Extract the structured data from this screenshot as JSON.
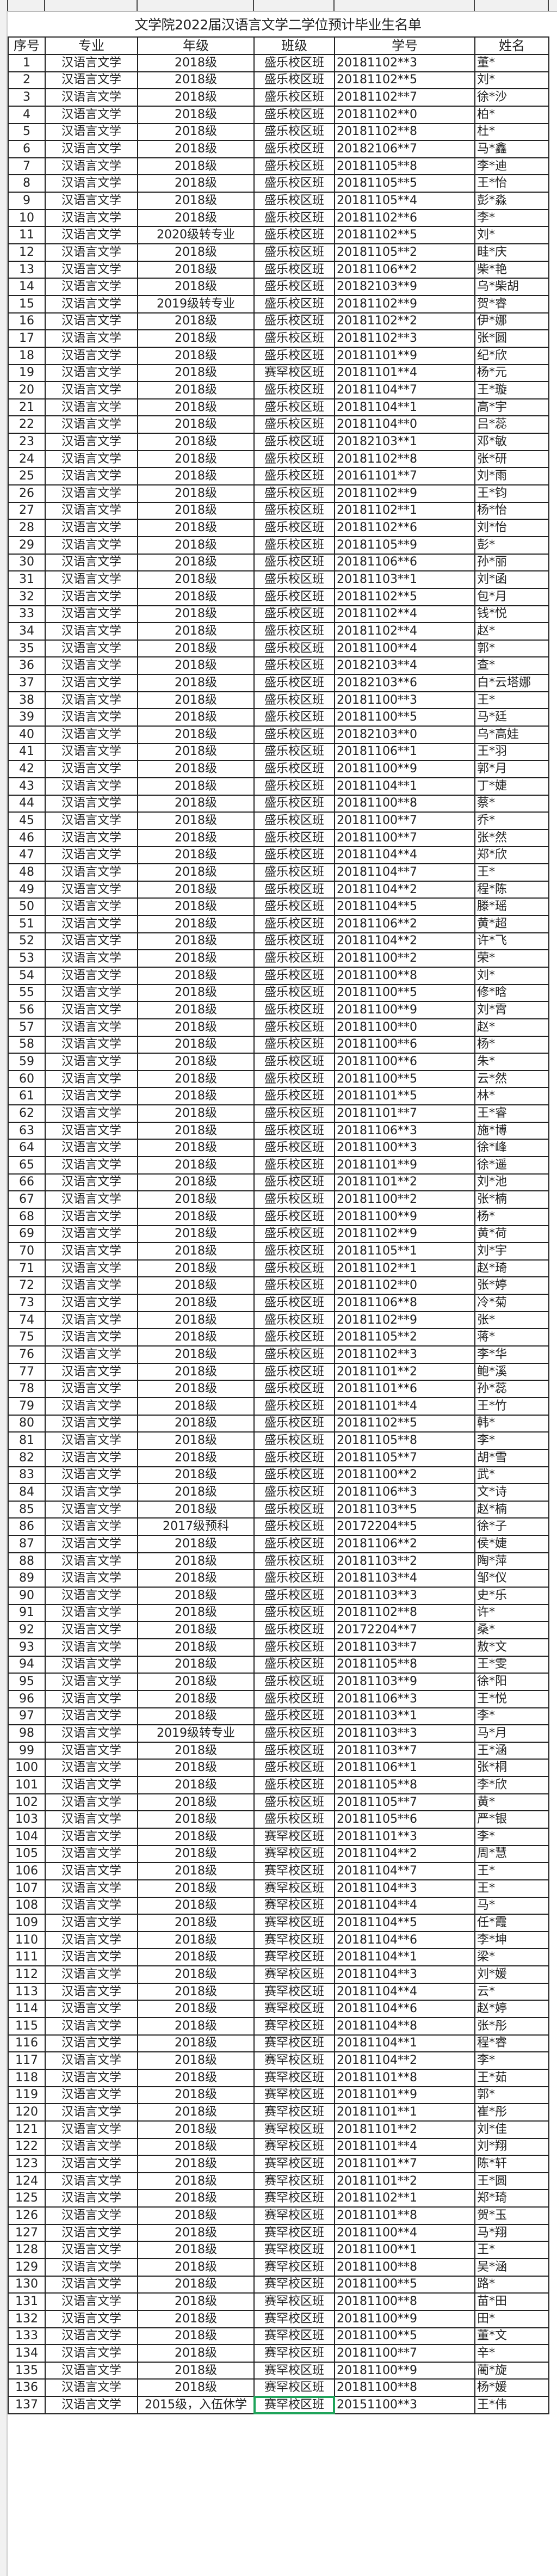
{
  "title": "文学院2022届汉语言文学二学位预计毕业生名单",
  "headers": [
    "序号",
    "专业",
    "年级",
    "班级",
    "学号",
    "姓名"
  ],
  "selected_cell": {
    "row": 137,
    "column": "班级"
  },
  "accent_color": "#1fa35a",
  "rows": [
    [
      1,
      "汉语言文学",
      "2018级",
      "盛乐校区班",
      "20181102**3",
      "董*"
    ],
    [
      2,
      "汉语言文学",
      "2018级",
      "盛乐校区班",
      "20181102**5",
      "刘*"
    ],
    [
      3,
      "汉语言文学",
      "2018级",
      "盛乐校区班",
      "20181102**7",
      "徐*沙"
    ],
    [
      4,
      "汉语言文学",
      "2018级",
      "盛乐校区班",
      "20181102**0",
      "柏*"
    ],
    [
      5,
      "汉语言文学",
      "2018级",
      "盛乐校区班",
      "20181102**8",
      "杜*"
    ],
    [
      6,
      "汉语言文学",
      "2018级",
      "盛乐校区班",
      "20182106**7",
      "马*鑫"
    ],
    [
      7,
      "汉语言文学",
      "2018级",
      "盛乐校区班",
      "20181105**8",
      "李*迪"
    ],
    [
      8,
      "汉语言文学",
      "2018级",
      "盛乐校区班",
      "20181105**5",
      "王*怡"
    ],
    [
      9,
      "汉语言文学",
      "2018级",
      "盛乐校区班",
      "20181105**4",
      "彭*淼"
    ],
    [
      10,
      "汉语言文学",
      "2018级",
      "盛乐校区班",
      "20181102**6",
      "李*"
    ],
    [
      11,
      "汉语言文学",
      "2020级转专业",
      "盛乐校区班",
      "20181102**5",
      "刘*"
    ],
    [
      12,
      "汉语言文学",
      "2018级",
      "盛乐校区班",
      "20181105**2",
      "畦*庆"
    ],
    [
      13,
      "汉语言文学",
      "2018级",
      "盛乐校区班",
      "20181106**2",
      "柴*艳"
    ],
    [
      14,
      "汉语言文学",
      "2018级",
      "盛乐校区班",
      "20182103**9",
      "乌*柴胡"
    ],
    [
      15,
      "汉语言文学",
      "2019级转专业",
      "盛乐校区班",
      "20181102**9",
      "贺*睿"
    ],
    [
      16,
      "汉语言文学",
      "2018级",
      "盛乐校区班",
      "20181102**2",
      "伊*娜"
    ],
    [
      17,
      "汉语言文学",
      "2018级",
      "盛乐校区班",
      "20181102**3",
      "张*圆"
    ],
    [
      18,
      "汉语言文学",
      "2018级",
      "盛乐校区班",
      "20181101**9",
      "纪*欣"
    ],
    [
      19,
      "汉语言文学",
      "2018级",
      "赛罕校区班",
      "20181101**4",
      "杨*元"
    ],
    [
      20,
      "汉语言文学",
      "2018级",
      "盛乐校区班",
      "20181104**7",
      "王*璇"
    ],
    [
      21,
      "汉语言文学",
      "2018级",
      "盛乐校区班",
      "20181104**1",
      "高*宇"
    ],
    [
      22,
      "汉语言文学",
      "2018级",
      "盛乐校区班",
      "20181104**0",
      "吕*蕊"
    ],
    [
      23,
      "汉语言文学",
      "2018级",
      "盛乐校区班",
      "20182103**1",
      "邓*敏"
    ],
    [
      24,
      "汉语言文学",
      "2018级",
      "盛乐校区班",
      "20181102**8",
      "张*研"
    ],
    [
      25,
      "汉语言文学",
      "2018级",
      "盛乐校区班",
      "20161101**7",
      "刘*雨"
    ],
    [
      26,
      "汉语言文学",
      "2018级",
      "盛乐校区班",
      "20181102**9",
      "王*钧"
    ],
    [
      27,
      "汉语言文学",
      "2018级",
      "盛乐校区班",
      "20181102**1",
      "杨*怡"
    ],
    [
      28,
      "汉语言文学",
      "2018级",
      "盛乐校区班",
      "20181102**6",
      "刘*怡"
    ],
    [
      29,
      "汉语言文学",
      "2018级",
      "盛乐校区班",
      "20181105**9",
      "彭*"
    ],
    [
      30,
      "汉语言文学",
      "2018级",
      "盛乐校区班",
      "20181106**6",
      "孙*丽"
    ],
    [
      31,
      "汉语言文学",
      "2018级",
      "盛乐校区班",
      "20181103**1",
      "刘*函"
    ],
    [
      32,
      "汉语言文学",
      "2018级",
      "盛乐校区班",
      "20181102**5",
      "包*月"
    ],
    [
      33,
      "汉语言文学",
      "2018级",
      "盛乐校区班",
      "20181102**4",
      "钱*悦"
    ],
    [
      34,
      "汉语言文学",
      "2018级",
      "盛乐校区班",
      "20181102**4",
      "赵*"
    ],
    [
      35,
      "汉语言文学",
      "2018级",
      "盛乐校区班",
      "20181100**4",
      "郭*"
    ],
    [
      36,
      "汉语言文学",
      "2018级",
      "盛乐校区班",
      "20182103**4",
      "查*"
    ],
    [
      37,
      "汉语言文学",
      "2018级",
      "盛乐校区班",
      "20182103**6",
      "白*云塔娜"
    ],
    [
      38,
      "汉语言文学",
      "2018级",
      "盛乐校区班",
      "20181100**3",
      "王*"
    ],
    [
      39,
      "汉语言文学",
      "2018级",
      "盛乐校区班",
      "20181100**5",
      "马*廷"
    ],
    [
      40,
      "汉语言文学",
      "2018级",
      "盛乐校区班",
      "20182103**0",
      "乌*高娃"
    ],
    [
      41,
      "汉语言文学",
      "2018级",
      "盛乐校区班",
      "20181106**1",
      "王*羽"
    ],
    [
      42,
      "汉语言文学",
      "2018级",
      "盛乐校区班",
      "20181100**9",
      "郭*月"
    ],
    [
      43,
      "汉语言文学",
      "2018级",
      "盛乐校区班",
      "20181104**1",
      "丁*婕"
    ],
    [
      44,
      "汉语言文学",
      "2018级",
      "盛乐校区班",
      "20181100**8",
      "蔡*"
    ],
    [
      45,
      "汉语言文学",
      "2018级",
      "盛乐校区班",
      "20181100**7",
      "乔*"
    ],
    [
      46,
      "汉语言文学",
      "2018级",
      "盛乐校区班",
      "20181100**7",
      "张*然"
    ],
    [
      47,
      "汉语言文学",
      "2018级",
      "盛乐校区班",
      "20181104**4",
      "郑*欣"
    ],
    [
      48,
      "汉语言文学",
      "2018级",
      "盛乐校区班",
      "20181104**7",
      "王*"
    ],
    [
      49,
      "汉语言文学",
      "2018级",
      "盛乐校区班",
      "20181104**2",
      "程*陈"
    ],
    [
      50,
      "汉语言文学",
      "2018级",
      "盛乐校区班",
      "20181104**5",
      "滕*瑶"
    ],
    [
      51,
      "汉语言文学",
      "2018级",
      "盛乐校区班",
      "20181106**2",
      "黄*超"
    ],
    [
      52,
      "汉语言文学",
      "2018级",
      "盛乐校区班",
      "20181104**2",
      "许*飞"
    ],
    [
      53,
      "汉语言文学",
      "2018级",
      "盛乐校区班",
      "20181100**2",
      "荣*"
    ],
    [
      54,
      "汉语言文学",
      "2018级",
      "盛乐校区班",
      "20181100**8",
      "刘*"
    ],
    [
      55,
      "汉语言文学",
      "2018级",
      "盛乐校区班",
      "20181100**5",
      "修*晗"
    ],
    [
      56,
      "汉语言文学",
      "2018级",
      "盛乐校区班",
      "20181100**9",
      "刘*霄"
    ],
    [
      57,
      "汉语言文学",
      "2018级",
      "盛乐校区班",
      "20181100**0",
      "赵*"
    ],
    [
      58,
      "汉语言文学",
      "2018级",
      "盛乐校区班",
      "20181100**6",
      "杨*"
    ],
    [
      59,
      "汉语言文学",
      "2018级",
      "盛乐校区班",
      "20181100**6",
      "朱*"
    ],
    [
      60,
      "汉语言文学",
      "2018级",
      "盛乐校区班",
      "20181100**5",
      "云*然"
    ],
    [
      61,
      "汉语言文学",
      "2018级",
      "盛乐校区班",
      "20181101**5",
      "林*"
    ],
    [
      62,
      "汉语言文学",
      "2018级",
      "盛乐校区班",
      "20181101**7",
      "王*睿"
    ],
    [
      63,
      "汉语言文学",
      "2018级",
      "盛乐校区班",
      "20181106**3",
      "施*博"
    ],
    [
      64,
      "汉语言文学",
      "2018级",
      "盛乐校区班",
      "20181100**3",
      "徐*峰"
    ],
    [
      65,
      "汉语言文学",
      "2018级",
      "盛乐校区班",
      "20181101**9",
      "徐*遥"
    ],
    [
      66,
      "汉语言文学",
      "2018级",
      "盛乐校区班",
      "20181101**2",
      "刘*池"
    ],
    [
      67,
      "汉语言文学",
      "2018级",
      "盛乐校区班",
      "20181100**2",
      "张*楠"
    ],
    [
      68,
      "汉语言文学",
      "2018级",
      "盛乐校区班",
      "20181100**9",
      "杨*"
    ],
    [
      69,
      "汉语言文学",
      "2018级",
      "盛乐校区班",
      "20181102**9",
      "黄*荷"
    ],
    [
      70,
      "汉语言文学",
      "2018级",
      "盛乐校区班",
      "20181105**1",
      "刘*宇"
    ],
    [
      71,
      "汉语言文学",
      "2018级",
      "盛乐校区班",
      "20181102**1",
      "赵*琦"
    ],
    [
      72,
      "汉语言文学",
      "2018级",
      "盛乐校区班",
      "20181102**0",
      "张*婷"
    ],
    [
      73,
      "汉语言文学",
      "2018级",
      "盛乐校区班",
      "20181106**8",
      "冷*菊"
    ],
    [
      74,
      "汉语言文学",
      "2018级",
      "盛乐校区班",
      "20181102**9",
      "张*"
    ],
    [
      75,
      "汉语言文学",
      "2018级",
      "盛乐校区班",
      "20181105**2",
      "蒋*"
    ],
    [
      76,
      "汉语言文学",
      "2018级",
      "盛乐校区班",
      "20181102**3",
      "李*华"
    ],
    [
      77,
      "汉语言文学",
      "2018级",
      "盛乐校区班",
      "20181101**2",
      "鲍*溪"
    ],
    [
      78,
      "汉语言文学",
      "2018级",
      "盛乐校区班",
      "20181101**6",
      "孙*蕊"
    ],
    [
      79,
      "汉语言文学",
      "2018级",
      "盛乐校区班",
      "20181101**4",
      "王*竹"
    ],
    [
      80,
      "汉语言文学",
      "2018级",
      "盛乐校区班",
      "20181102**5",
      "韩*"
    ],
    [
      81,
      "汉语言文学",
      "2018级",
      "盛乐校区班",
      "20181105**8",
      "李*"
    ],
    [
      82,
      "汉语言文学",
      "2018级",
      "盛乐校区班",
      "20181105**7",
      "胡*雪"
    ],
    [
      83,
      "汉语言文学",
      "2018级",
      "盛乐校区班",
      "20181100**2",
      "武*"
    ],
    [
      84,
      "汉语言文学",
      "2018级",
      "盛乐校区班",
      "20181106**3",
      "文*诗"
    ],
    [
      85,
      "汉语言文学",
      "2018级",
      "盛乐校区班",
      "20181103**5",
      "赵*楠"
    ],
    [
      86,
      "汉语言文学",
      "2017级预科",
      "盛乐校区班",
      "20172204**5",
      "徐*子"
    ],
    [
      87,
      "汉语言文学",
      "2018级",
      "盛乐校区班",
      "20181106**2",
      "侯*婕"
    ],
    [
      88,
      "汉语言文学",
      "2018级",
      "盛乐校区班",
      "20181103**2",
      "陶*萍"
    ],
    [
      89,
      "汉语言文学",
      "2018级",
      "盛乐校区班",
      "20181103**4",
      "邹*仪"
    ],
    [
      90,
      "汉语言文学",
      "2018级",
      "盛乐校区班",
      "20181103**3",
      "史*乐"
    ],
    [
      91,
      "汉语言文学",
      "2018级",
      "盛乐校区班",
      "20181102**8",
      "许*"
    ],
    [
      92,
      "汉语言文学",
      "2018级",
      "盛乐校区班",
      "20172204**7",
      "桑*"
    ],
    [
      93,
      "汉语言文学",
      "2018级",
      "盛乐校区班",
      "20181103**7",
      "敖*文"
    ],
    [
      94,
      "汉语言文学",
      "2018级",
      "盛乐校区班",
      "20181105**8",
      "王*雯"
    ],
    [
      95,
      "汉语言文学",
      "2018级",
      "盛乐校区班",
      "20181103**9",
      "徐*阳"
    ],
    [
      96,
      "汉语言文学",
      "2018级",
      "盛乐校区班",
      "20181106**3",
      "王*悦"
    ],
    [
      97,
      "汉语言文学",
      "2018级",
      "盛乐校区班",
      "20181103**1",
      "李*"
    ],
    [
      98,
      "汉语言文学",
      "2019级转专业",
      "盛乐校区班",
      "20181103**3",
      "马*月"
    ],
    [
      99,
      "汉语言文学",
      "2018级",
      "盛乐校区班",
      "20181103**7",
      "王*涵"
    ],
    [
      100,
      "汉语言文学",
      "2018级",
      "盛乐校区班",
      "20181106**1",
      "张*桐"
    ],
    [
      101,
      "汉语言文学",
      "2018级",
      "盛乐校区班",
      "20181105**8",
      "李*欣"
    ],
    [
      102,
      "汉语言文学",
      "2018级",
      "盛乐校区班",
      "20181105**7",
      "黄*"
    ],
    [
      103,
      "汉语言文学",
      "2018级",
      "盛乐校区班",
      "20181105**6",
      "严*银"
    ],
    [
      104,
      "汉语言文学",
      "2018级",
      "赛罕校区班",
      "20181101**3",
      "李*"
    ],
    [
      105,
      "汉语言文学",
      "2018级",
      "赛罕校区班",
      "20181104**2",
      "周*慧"
    ],
    [
      106,
      "汉语言文学",
      "2018级",
      "赛罕校区班",
      "20181104**7",
      "王*"
    ],
    [
      107,
      "汉语言文学",
      "2018级",
      "赛罕校区班",
      "20181104**3",
      "王*"
    ],
    [
      108,
      "汉语言文学",
      "2018级",
      "赛罕校区班",
      "20181104**4",
      "马*"
    ],
    [
      109,
      "汉语言文学",
      "2018级",
      "赛罕校区班",
      "20181104**5",
      "任*霞"
    ],
    [
      110,
      "汉语言文学",
      "2018级",
      "赛罕校区班",
      "20181104**6",
      "李*坤"
    ],
    [
      111,
      "汉语言文学",
      "2018级",
      "赛罕校区班",
      "20181104**1",
      "梁*"
    ],
    [
      112,
      "汉语言文学",
      "2018级",
      "赛罕校区班",
      "20181104**3",
      "刘*媛"
    ],
    [
      113,
      "汉语言文学",
      "2018级",
      "赛罕校区班",
      "20181104**4",
      "云*"
    ],
    [
      114,
      "汉语言文学",
      "2018级",
      "赛罕校区班",
      "20181104**6",
      "赵*婷"
    ],
    [
      115,
      "汉语言文学",
      "2018级",
      "赛罕校区班",
      "20181104**8",
      "张*彤"
    ],
    [
      116,
      "汉语言文学",
      "2018级",
      "赛罕校区班",
      "20181104**1",
      "程*睿"
    ],
    [
      117,
      "汉语言文学",
      "2018级",
      "赛罕校区班",
      "20181104**2",
      "李*"
    ],
    [
      118,
      "汉语言文学",
      "2018级",
      "赛罕校区班",
      "20181101**8",
      "王*茹"
    ],
    [
      119,
      "汉语言文学",
      "2018级",
      "赛罕校区班",
      "20181101**9",
      "郭*"
    ],
    [
      120,
      "汉语言文学",
      "2018级",
      "赛罕校区班",
      "20181101**1",
      "崔*彤"
    ],
    [
      121,
      "汉语言文学",
      "2018级",
      "赛罕校区班",
      "20181101**2",
      "刘*佳"
    ],
    [
      122,
      "汉语言文学",
      "2018级",
      "赛罕校区班",
      "20181101**4",
      "刘*翔"
    ],
    [
      123,
      "汉语言文学",
      "2018级",
      "赛罕校区班",
      "20181101**7",
      "陈*轩"
    ],
    [
      124,
      "汉语言文学",
      "2018级",
      "赛罕校区班",
      "20181101**2",
      "王*圆"
    ],
    [
      125,
      "汉语言文学",
      "2018级",
      "赛罕校区班",
      "20181102**1",
      "郑*琦"
    ],
    [
      126,
      "汉语言文学",
      "2018级",
      "赛罕校区班",
      "20181101**8",
      "贺*玉"
    ],
    [
      127,
      "汉语言文学",
      "2018级",
      "赛罕校区班",
      "20181100**4",
      "马*翔"
    ],
    [
      128,
      "汉语言文学",
      "2018级",
      "赛罕校区班",
      "20181100**1",
      "王*"
    ],
    [
      129,
      "汉语言文学",
      "2018级",
      "赛罕校区班",
      "20181100**8",
      "吴*涵"
    ],
    [
      130,
      "汉语言文学",
      "2018级",
      "赛罕校区班",
      "20181100**5",
      "路*"
    ],
    [
      131,
      "汉语言文学",
      "2018级",
      "赛罕校区班",
      "20181100**8",
      "苗*田"
    ],
    [
      132,
      "汉语言文学",
      "2018级",
      "赛罕校区班",
      "20181100**9",
      "田*"
    ],
    [
      133,
      "汉语言文学",
      "2018级",
      "赛罕校区班",
      "20181100**5",
      "董*文"
    ],
    [
      134,
      "汉语言文学",
      "2018级",
      "赛罕校区班",
      "20181100**7",
      "辛*"
    ],
    [
      135,
      "汉语言文学",
      "2018级",
      "赛罕校区班",
      "20181100**9",
      "蔺*旋"
    ],
    [
      136,
      "汉语言文学",
      "2018级",
      "赛罕校区班",
      "20181100**8",
      "杨*媛"
    ],
    [
      137,
      "汉语言文学",
      "2015级，入伍休学",
      "赛罕校区班",
      "20151100**3",
      "王*伟"
    ]
  ]
}
